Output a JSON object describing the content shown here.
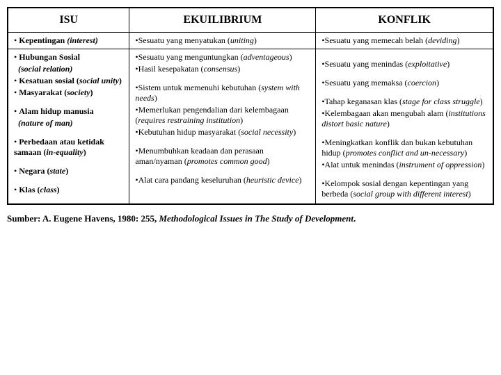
{
  "headers": {
    "c1": "ISU",
    "c2": "EKUILIBRIUM",
    "c3": "KONFLIK"
  },
  "row1": {
    "c1": {
      "bullet": "•",
      "b": "Kepentingan",
      "i": "(interest)"
    },
    "c2": {
      "bullet": "•",
      "t1": "Sesuatu yang menyatukan (",
      "i": "uniting",
      "t2": ")"
    },
    "c3": {
      "bullet": "•",
      "t1": "Sesuatu yang memecah belah (",
      "i": "deviding",
      "t2": ")"
    }
  },
  "row2": {
    "c1": {
      "l1": {
        "bullet": "•",
        "b": "Hubungan Sosial"
      },
      "l1b": {
        "i": "(social relation)"
      },
      "l2": {
        "bullet": "•",
        "b1": "Kesatuan sosial (",
        "ib": "social unity",
        "b2": ")"
      },
      "l3": {
        "bullet": "•",
        "b1": "Masyarakat (",
        "ib": "society",
        "b2": ")"
      },
      "l4": {
        "bullet": "•",
        "b": "Alam hidup manusia"
      },
      "l4b": {
        "i": "(nature of man)"
      },
      "l5": {
        "bullet": "•",
        "b1": "Perbedaan atau ketidak samaan (",
        "ib": "in-equality",
        "b2": ")"
      },
      "l6": {
        "bullet": "•",
        "b1": "Negara (",
        "ib": "state",
        "b2": ")"
      },
      "l7": {
        "bullet": "•",
        "b1": "Klas (",
        "ib": "class",
        "b2": ")"
      }
    },
    "c2": {
      "l1": {
        "bullet": "•",
        "t1": "Sesuatu yang menguntungkan (",
        "i": "adventageous",
        "t2": ")"
      },
      "l2": {
        "bullet": "•",
        "t1": "Hasil kesepakatan (",
        "i": "consensus",
        "t2": ")"
      },
      "l3": {
        "bullet": "•",
        "t1": "Sistem untuk memenuhi kebutuhan (",
        "i": "system with needs",
        "t2": ")"
      },
      "l4": {
        "bullet": "•",
        "t1": "Memerlukan pengendalian dari kelembagaan (",
        "i": "requires restraining institution",
        "t2": ")"
      },
      "l5": {
        "bullet": "•",
        "t1": "Kebutuhan hidup masyarakat (",
        "i": "social necessity",
        "t2": ")"
      },
      "l6": {
        "bullet": "•",
        "t1": "Menumbuhkan keadaan dan perasaan aman/nyaman (",
        "i": "promotes common good",
        "t2": ")"
      },
      "l7": {
        "bullet": "•",
        "t1": "Alat cara pandang keseluruhan (",
        "i": "heuristic device",
        "t2": ")"
      }
    },
    "c3": {
      "l1": {
        "bullet": "•",
        "t1": "Sesuatu yang menindas (",
        "i": "exploitative",
        "t2": ")"
      },
      "l2": {
        "bullet": "•",
        "t1": "Sesuatu yang memaksa (",
        "i": "coercion",
        "t2": ")"
      },
      "l3": {
        "bullet": "•",
        "t1": "Tahap keganasan klas (",
        "i": "stage for class struggle",
        "t2": ")"
      },
      "l4": {
        "bullet": "•",
        "t1": "Kelembagaan akan mengubah alam (",
        "i": "institutions distort basic nature",
        "t2": ")"
      },
      "l5": {
        "bullet": "•",
        "t1": "Meningkatkan konflik dan bukan kebutuhan hidup (",
        "i": "promotes conflict and un-necessary",
        "t2": ")"
      },
      "l6": {
        "bullet": "•",
        "t1": "Alat untuk menindas (",
        "i": "instrument of oppression",
        "t2": ")"
      },
      "l7": {
        "bullet": "•",
        "t1": "Kelompok sosial dengan kepentingan yang berbeda (",
        "i": "social group with different interest",
        "t2": ")"
      }
    }
  },
  "source": {
    "t1": "Sumber: A. Eugene Havens, 1980: 255, ",
    "i": "Methodological Issues in The Study of Development",
    "t2": "."
  }
}
